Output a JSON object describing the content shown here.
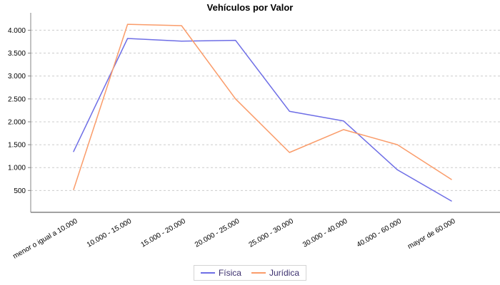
{
  "chart": {
    "title": "Vehículos por Valor"
  },
  "chart_data": {
    "type": "line",
    "title": "Vehículos por Valor",
    "xlabel": "",
    "ylabel": "",
    "categories": [
      "menor o igual a 10.000",
      "10.000 - 15.000",
      "15.000 - 20.000",
      "20.000 - 25.000",
      "25.000 - 30.000",
      "30.000 - 40.000",
      "40.000 - 60.000",
      "mayor de 60.000"
    ],
    "series": [
      {
        "name": "Física",
        "color": "#6e6ee6",
        "values": [
          1350,
          3820,
          3760,
          3780,
          2230,
          2020,
          950,
          270
        ]
      },
      {
        "name": "Jurídica",
        "color": "#fa9c6a",
        "values": [
          520,
          4130,
          4100,
          2500,
          1330,
          1830,
          1500,
          740
        ]
      }
    ],
    "ylim": [
      0,
      4380
    ],
    "y_ticks": [
      {
        "value": 500,
        "label": "500"
      },
      {
        "value": 1000,
        "label": "1.000"
      },
      {
        "value": 1500,
        "label": "1.500"
      },
      {
        "value": 2000,
        "label": "2.000"
      },
      {
        "value": 2500,
        "label": "2.500"
      },
      {
        "value": 3000,
        "label": "3.000"
      },
      {
        "value": 3500,
        "label": "3.500"
      },
      {
        "value": 4000,
        "label": "4.000"
      }
    ],
    "grid": "horizontal-dashed",
    "legend_position": "bottom"
  },
  "colors": {
    "grid": "#cccccc",
    "axis": "#848484",
    "tick_text": "#000000",
    "category_text": "#000000",
    "legend_text": "#3b2f6e",
    "legend_border": "#d4d4d4",
    "background": "#ffffff"
  }
}
